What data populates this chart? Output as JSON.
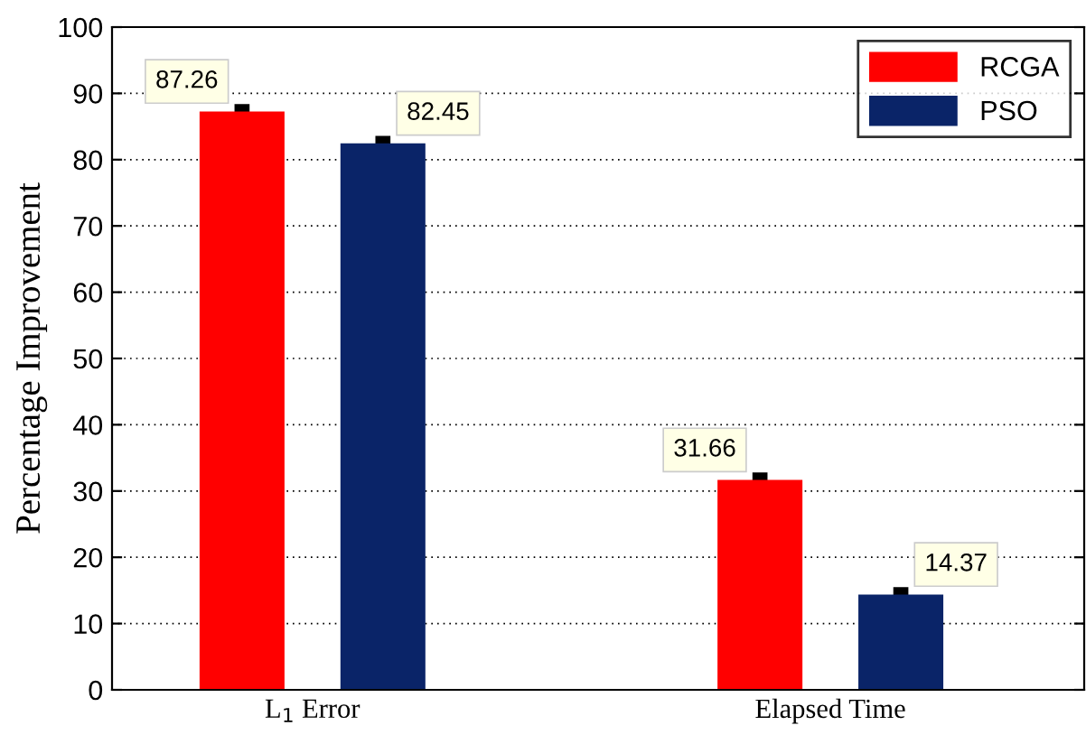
{
  "chart_data": {
    "type": "bar",
    "ylabel": "Percentage Improvement",
    "categories": [
      "L$_{1}$ Error",
      "Elapsed Time"
    ],
    "series": [
      {
        "name": "RCGA",
        "color": "#ff0000",
        "values": [
          87.26,
          31.66
        ]
      },
      {
        "name": "PSO",
        "color": "#0a2468",
        "values": [
          82.45,
          14.37
        ]
      }
    ],
    "ylim": [
      0,
      100
    ],
    "yticks": [
      0,
      10,
      20,
      30,
      40,
      50,
      60,
      70,
      80,
      90,
      100
    ],
    "grid": "y",
    "legend": "top right",
    "data_labels": true
  }
}
